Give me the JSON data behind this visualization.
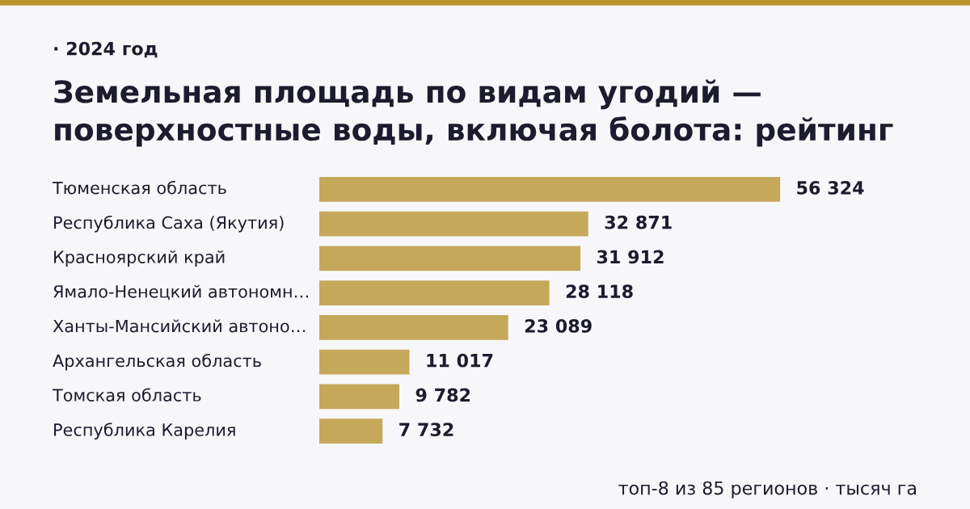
{
  "chart_data": {
    "type": "bar",
    "orientation": "horizontal",
    "subtitle": "· 2024 год",
    "title": "Земельная площадь по видам угодий —\nповерхностные воды, включая болота: рейтинг",
    "categories": [
      "Тюменская область",
      "Республика Саха (Якутия)",
      "Красноярский край",
      "Ямало-Ненецкий автономн…",
      "Ханты-Мансийский автоно…",
      "Архангельская область",
      "Томская область",
      "Республика Карелия"
    ],
    "values": [
      56324,
      32871,
      31912,
      28118,
      23089,
      11017,
      9782,
      7732
    ],
    "value_labels": [
      "56 324",
      "32 871",
      "31 912",
      "28 118",
      "23 089",
      "11 017",
      "9 782",
      "7 732"
    ],
    "color": "#c5a85a",
    "annotations": [
      "топ-8 из 85 регионов · тысяч га"
    ]
  }
}
